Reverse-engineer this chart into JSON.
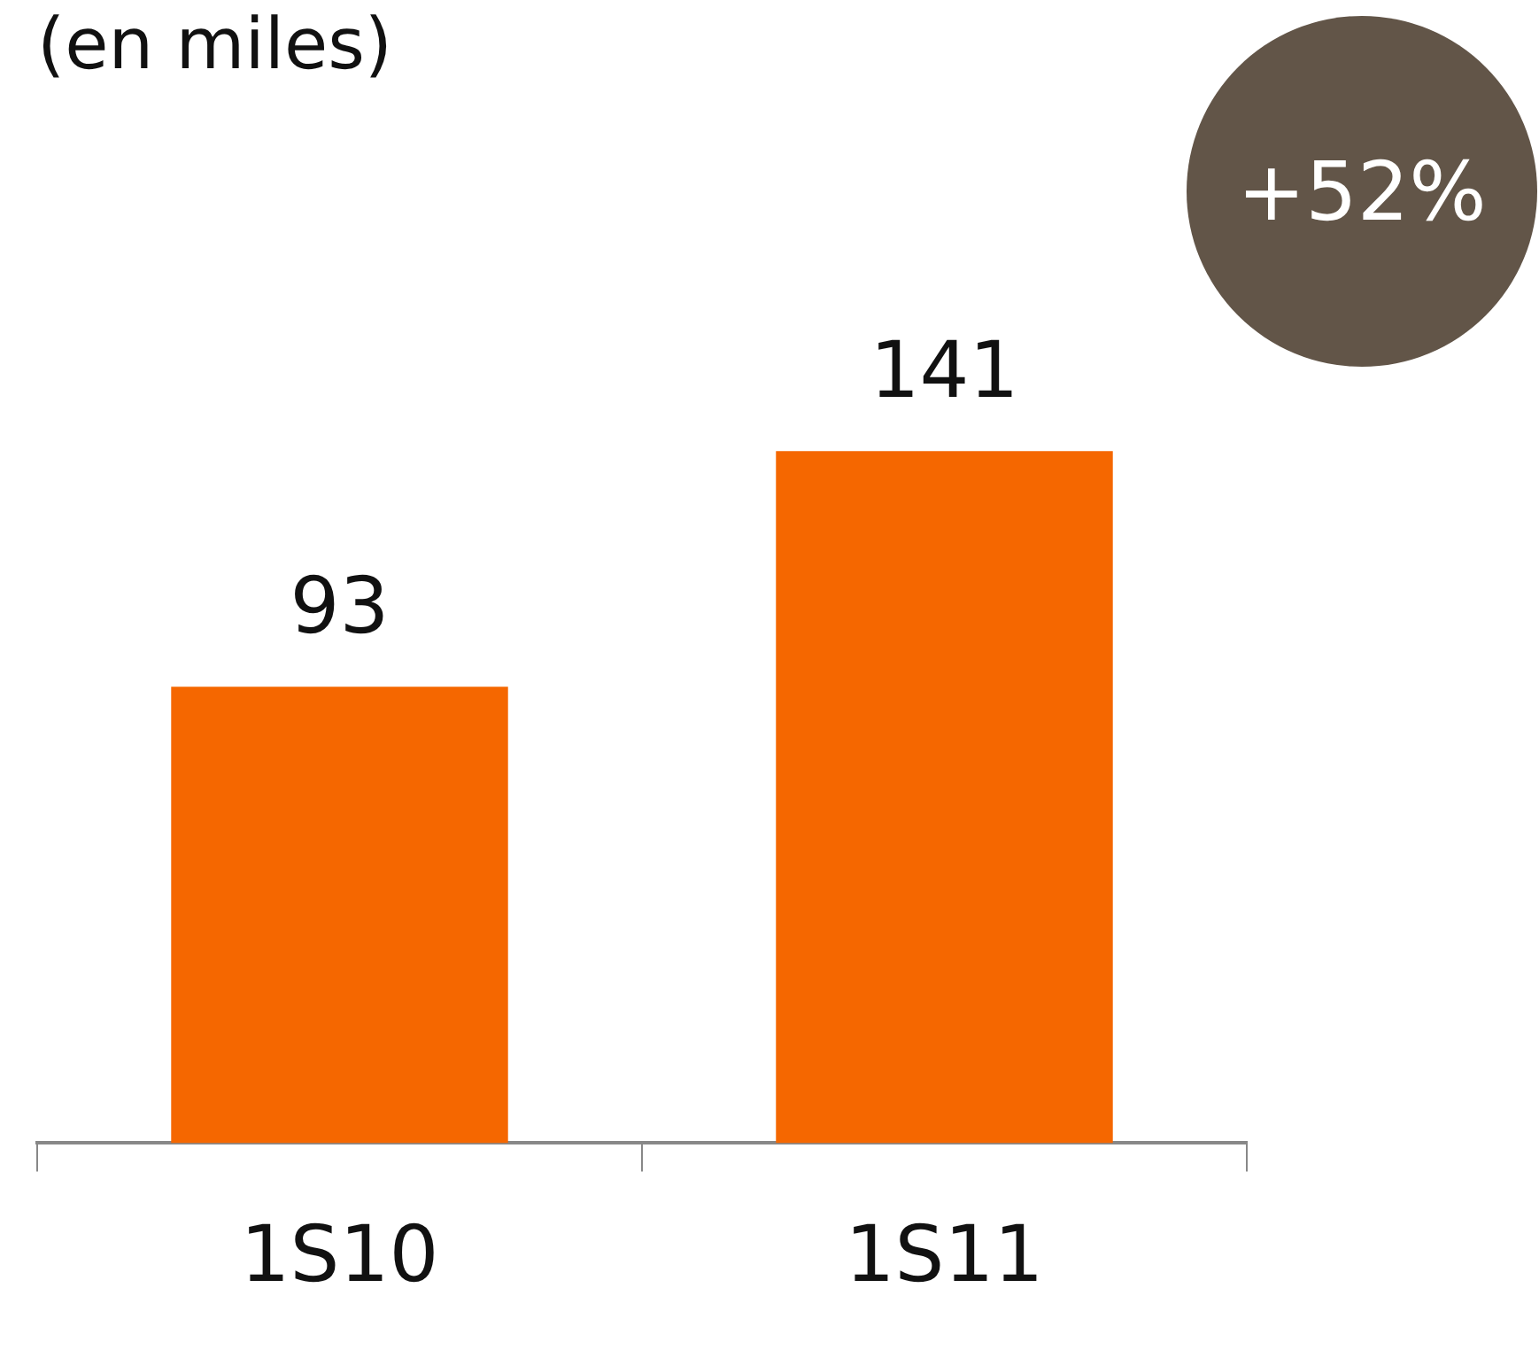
{
  "chart_data": {
    "type": "bar",
    "title": "(en miles)",
    "categories": [
      "1S10",
      "1S11"
    ],
    "values": [
      93,
      141
    ],
    "color": "#f56700",
    "data_labels": true,
    "grid": false,
    "legend": false,
    "annotations": [
      "+52%"
    ]
  }
}
